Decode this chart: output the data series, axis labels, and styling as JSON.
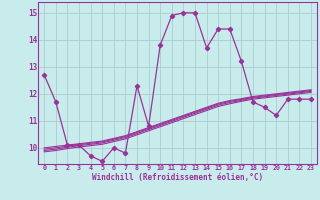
{
  "title": "",
  "xlabel": "Windchill (Refroidissement éolien,°C)",
  "xlim": [
    -0.5,
    23.5
  ],
  "ylim": [
    9.4,
    15.4
  ],
  "bg_color": "#c8ecec",
  "line_color": "#993399",
  "grid_color": "#aacccc",
  "xticks": [
    0,
    1,
    2,
    3,
    4,
    5,
    6,
    7,
    8,
    9,
    10,
    11,
    12,
    13,
    14,
    15,
    16,
    17,
    18,
    19,
    20,
    21,
    22,
    23
  ],
  "yticks": [
    10,
    11,
    12,
    13,
    14,
    15
  ],
  "series": {
    "main": [
      12.7,
      11.7,
      10.1,
      10.1,
      9.7,
      9.5,
      10.0,
      9.8,
      12.3,
      10.8,
      13.8,
      14.9,
      15.0,
      15.0,
      13.7,
      14.4,
      14.4,
      13.2,
      11.7,
      11.5,
      11.2,
      11.8,
      11.8,
      11.8
    ],
    "smooth1": [
      10.0,
      10.05,
      10.1,
      10.15,
      10.2,
      10.25,
      10.35,
      10.45,
      10.6,
      10.75,
      10.9,
      11.05,
      11.2,
      11.35,
      11.5,
      11.65,
      11.75,
      11.82,
      11.9,
      11.95,
      12.0,
      12.05,
      12.1,
      12.15
    ],
    "smooth2": [
      9.95,
      10.0,
      10.06,
      10.12,
      10.17,
      10.22,
      10.32,
      10.42,
      10.57,
      10.72,
      10.87,
      11.02,
      11.17,
      11.32,
      11.47,
      11.62,
      11.72,
      11.79,
      11.87,
      11.92,
      11.97,
      12.02,
      12.07,
      12.12
    ],
    "smooth3": [
      9.9,
      9.95,
      10.02,
      10.08,
      10.13,
      10.18,
      10.28,
      10.38,
      10.53,
      10.68,
      10.83,
      10.98,
      11.13,
      11.28,
      11.43,
      11.58,
      11.68,
      11.76,
      11.84,
      11.89,
      11.94,
      11.99,
      12.04,
      12.09
    ],
    "smooth4": [
      9.85,
      9.9,
      9.97,
      10.03,
      10.08,
      10.13,
      10.23,
      10.33,
      10.48,
      10.63,
      10.78,
      10.93,
      11.08,
      11.23,
      11.38,
      11.53,
      11.63,
      11.72,
      11.8,
      11.85,
      11.9,
      11.95,
      12.0,
      12.05
    ]
  }
}
